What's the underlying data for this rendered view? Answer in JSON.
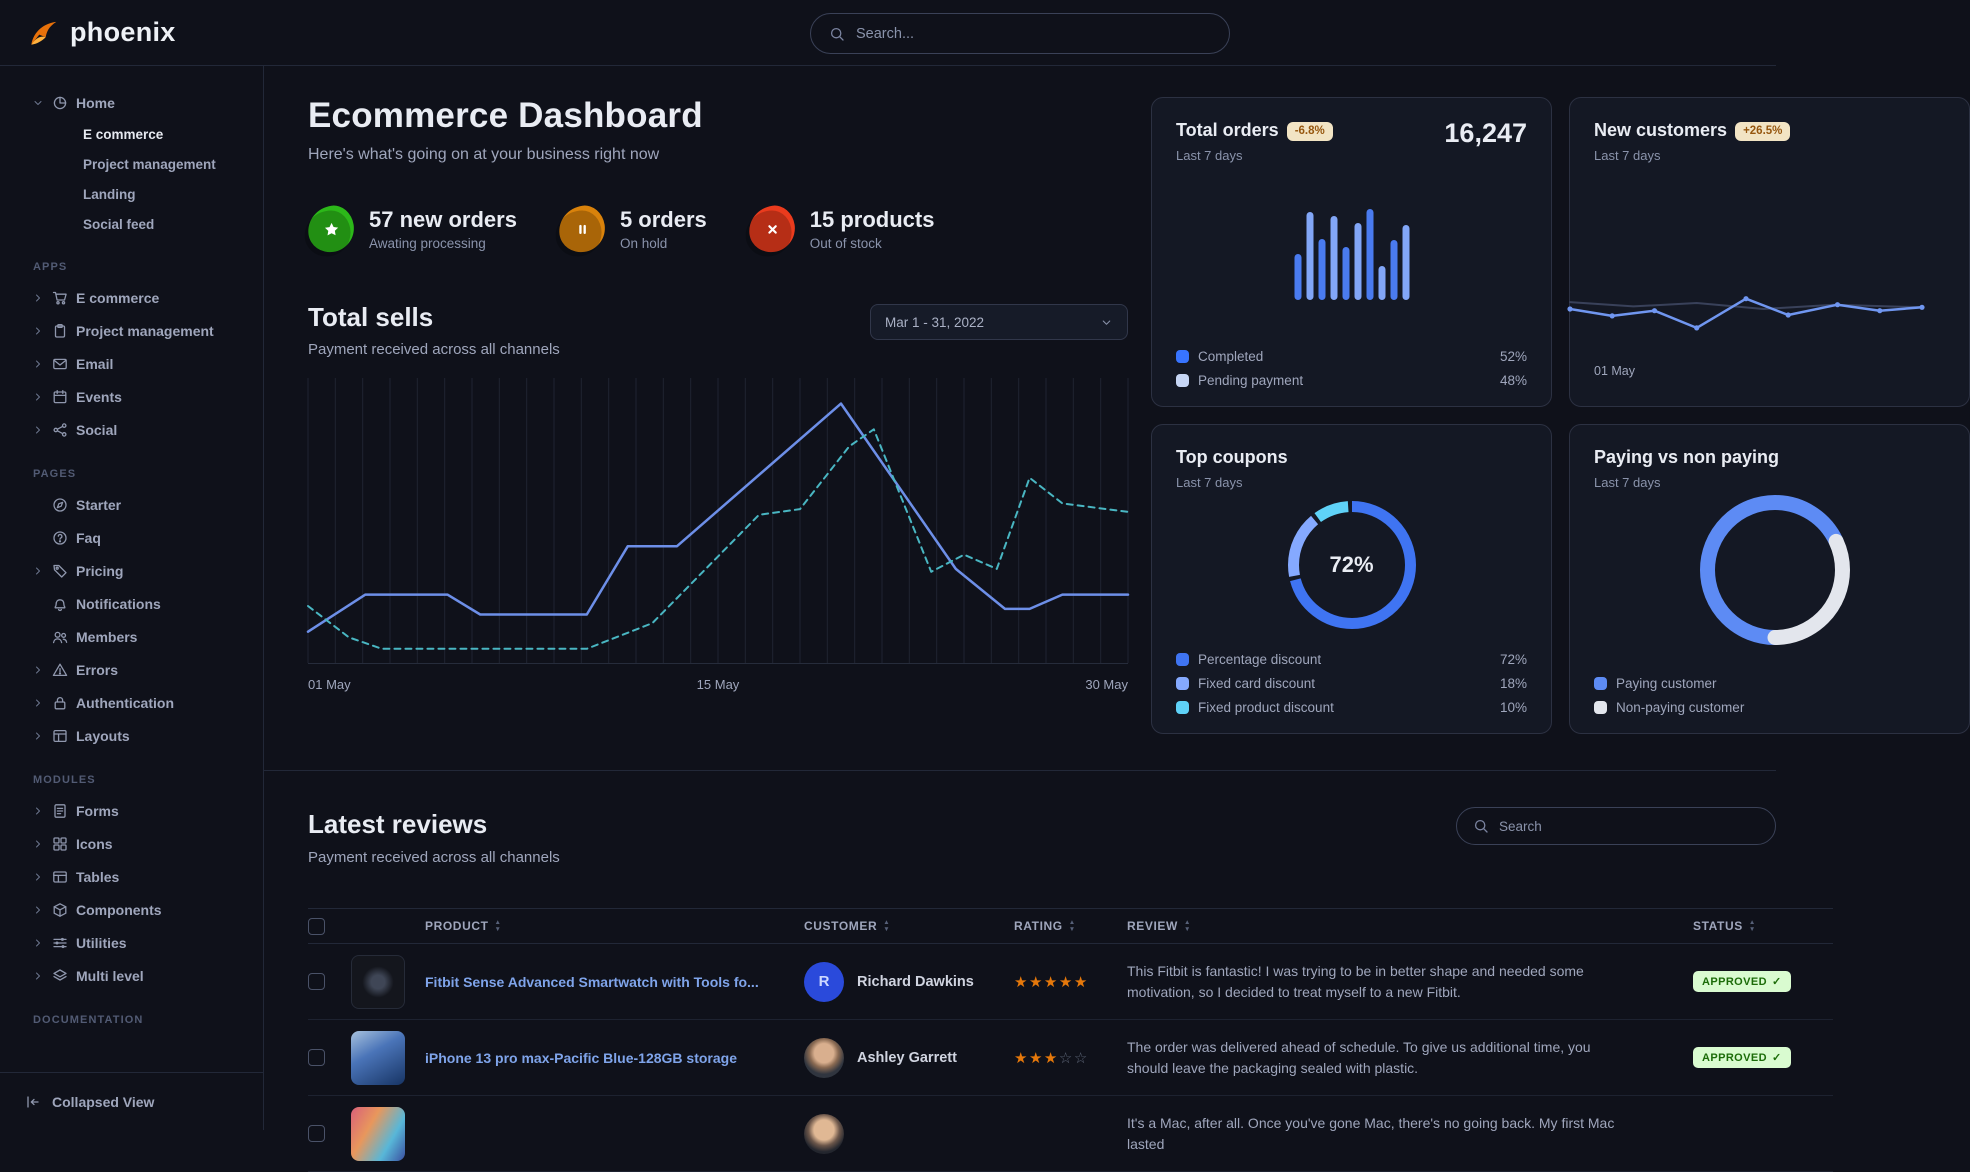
{
  "navbar": {
    "brand": "phoenix",
    "search": {
      "placeholder": "Search..."
    }
  },
  "sidebar": {
    "home_group": {
      "label": "Home",
      "icon": "pie",
      "children": [
        {
          "label": "E commerce",
          "active": true
        },
        {
          "label": "Project management",
          "active": false
        },
        {
          "label": "Landing",
          "active": false
        },
        {
          "label": "Social feed",
          "active": false
        }
      ]
    },
    "sections": [
      {
        "label": "APPS",
        "items": [
          {
            "label": "E commerce",
            "icon": "cart"
          },
          {
            "label": "Project management",
            "icon": "clipboard"
          },
          {
            "label": "Email",
            "icon": "mail"
          },
          {
            "label": "Events",
            "icon": "calendar"
          },
          {
            "label": "Social",
            "icon": "share"
          }
        ]
      },
      {
        "label": "PAGES",
        "items": [
          {
            "label": "Starter",
            "icon": "compass"
          },
          {
            "label": "Faq",
            "icon": "question"
          },
          {
            "label": "Pricing",
            "icon": "tag"
          },
          {
            "label": "Notifications",
            "icon": "bell"
          },
          {
            "label": "Members",
            "icon": "users"
          },
          {
            "label": "Errors",
            "icon": "warning"
          },
          {
            "label": "Authentication",
            "icon": "lock"
          },
          {
            "label": "Layouts",
            "icon": "layout"
          }
        ]
      },
      {
        "label": "MODULES",
        "items": [
          {
            "label": "Forms",
            "icon": "form"
          },
          {
            "label": "Icons",
            "icon": "grid"
          },
          {
            "label": "Tables",
            "icon": "table"
          },
          {
            "label": "Components",
            "icon": "box"
          },
          {
            "label": "Utilities",
            "icon": "sliders"
          },
          {
            "label": "Multi level",
            "icon": "layers"
          }
        ]
      },
      {
        "label": "DOCUMENTATION",
        "items": []
      }
    ],
    "footer": {
      "label": "Collapsed View",
      "icon": "collapse"
    }
  },
  "header": {
    "title": "Ecommerce Dashboard",
    "subtitle": "Here's what's going on at your business right now"
  },
  "stats": [
    {
      "value": "57 new orders",
      "caption": "Awating processing",
      "icon": "star-solid",
      "color": "#2cb819"
    },
    {
      "value": "5 orders",
      "caption": "On hold",
      "icon": "pause",
      "color": "#d9820b"
    },
    {
      "value": "15 products",
      "caption": "Out of stock",
      "icon": "x",
      "color": "#ea3b1d"
    }
  ],
  "total_sells": {
    "title": "Total sells",
    "subtitle": "Payment received across all channels",
    "date_range": "Mar 1 - 31, 2022"
  },
  "cards": {
    "total_orders": {
      "title": "Total orders",
      "badge": "-6.8%",
      "period": "Last 7 days",
      "value": "16,247"
    },
    "new_customers": {
      "title": "New customers",
      "badge": "+26.5%",
      "period": "Last 7 days"
    },
    "top_coupons": {
      "title": "Top coupons",
      "period": "Last 7 days"
    },
    "paying": {
      "title": "Paying vs non paying",
      "period": "Last 7 days"
    }
  },
  "reviews": {
    "title": "Latest reviews",
    "subtitle": "Payment received across all channels",
    "search_placeholder": "Search",
    "columns": [
      "PRODUCT",
      "CUSTOMER",
      "RATING",
      "REVIEW",
      "STATUS"
    ],
    "rows": [
      {
        "product": "Fitbit Sense Advanced Smartwatch with Tools fo...",
        "customer": "Richard Dawkins",
        "avatar_text": "R",
        "rating": 5,
        "review": "This Fitbit is fantastic! I was trying to be in better shape and needed some motivation, so I decided to treat myself to a new Fitbit.",
        "status": "APPROVED"
      },
      {
        "product": "iPhone 13 pro max-Pacific Blue-128GB storage",
        "customer": "Ashley Garrett",
        "avatar_text": "",
        "rating": 3,
        "review": "The order was delivered ahead of schedule. To give us additional time, you should leave the packaging sealed with plastic.",
        "status": "APPROVED"
      },
      {
        "product": "",
        "customer": "",
        "avatar_text": "",
        "rating": 0,
        "review": "It's a Mac, after all. Once you've gone Mac, there's no going back. My first Mac lasted",
        "status": ""
      }
    ]
  },
  "chart_data": [
    {
      "id": "total-sells",
      "type": "line",
      "title": "Total sells",
      "x_ticks": [
        "01 May",
        "15 May",
        "30 May"
      ],
      "ylim": [
        0,
        100
      ],
      "grid": "vertical",
      "grid_lines": 30,
      "series": [
        {
          "name": "current period",
          "style": "solid",
          "color": "#6d8fe8",
          "width": 2.5,
          "points": [
            [
              0,
              11
            ],
            [
              0.07,
              24
            ],
            [
              0.17,
              24
            ],
            [
              0.21,
              17
            ],
            [
              0.34,
              17
            ],
            [
              0.39,
              41
            ],
            [
              0.45,
              41
            ],
            [
              0.65,
              91
            ],
            [
              0.79,
              33
            ],
            [
              0.85,
              19
            ],
            [
              0.88,
              19
            ],
            [
              0.92,
              24
            ],
            [
              1,
              24
            ]
          ]
        },
        {
          "name": "previous period",
          "style": "dashed",
          "color": "#49b6c2",
          "width": 2,
          "points": [
            [
              0,
              20
            ],
            [
              0.05,
              9
            ],
            [
              0.09,
              5
            ],
            [
              0.34,
              5
            ],
            [
              0.42,
              14
            ],
            [
              0.55,
              52
            ],
            [
              0.6,
              54
            ],
            [
              0.66,
              76
            ],
            [
              0.69,
              82
            ],
            [
              0.76,
              32
            ],
            [
              0.8,
              38
            ],
            [
              0.84,
              33
            ],
            [
              0.88,
              65
            ],
            [
              0.92,
              56
            ],
            [
              1,
              53
            ]
          ]
        }
      ]
    },
    {
      "id": "total-orders",
      "type": "bar",
      "title": "Total orders",
      "values": [
        48,
        92,
        64,
        88,
        55,
        80,
        95,
        35,
        62,
        78
      ],
      "colors": [
        "#4a7bf0",
        "#82a6f7"
      ],
      "legend": [
        {
          "label": "Completed",
          "display": "52%",
          "color": "#3874ff"
        },
        {
          "label": "Pending payment",
          "display": "48%",
          "color": "#c7d6f5"
        }
      ]
    },
    {
      "id": "new-customers",
      "type": "line",
      "title": "New customers",
      "x_ticks": [
        "01 May"
      ],
      "series": [
        {
          "name": "baseline",
          "style": "solid",
          "color": "#39415a",
          "width": 2,
          "points": [
            [
              0,
              58
            ],
            [
              0.18,
              53
            ],
            [
              0.36,
              57
            ],
            [
              0.55,
              50
            ],
            [
              0.75,
              55
            ],
            [
              1,
              52
            ]
          ]
        },
        {
          "name": "new customers",
          "style": "solid",
          "color": "#7096f0",
          "width": 2.5,
          "markers": true,
          "points": [
            [
              0,
              50
            ],
            [
              0.12,
              42
            ],
            [
              0.24,
              48
            ],
            [
              0.36,
              28
            ],
            [
              0.5,
              62
            ],
            [
              0.62,
              43
            ],
            [
              0.76,
              55
            ],
            [
              0.88,
              48
            ],
            [
              1,
              52
            ]
          ]
        }
      ]
    },
    {
      "id": "top-coupons",
      "type": "pie",
      "title": "Top coupons",
      "center_label": "72%",
      "stroke": 11,
      "gap": 4,
      "start": -90,
      "slices": [
        {
          "label": "Percentage discount",
          "value": 72,
          "display": "72%",
          "color": "#3f74f2"
        },
        {
          "label": "Fixed card discount",
          "value": 18,
          "display": "18%",
          "color": "#85a9ff"
        },
        {
          "label": "Fixed product discount",
          "value": 10,
          "display": "10%",
          "color": "#5fd2f8"
        }
      ]
    },
    {
      "id": "paying-gauge",
      "type": "pie",
      "title": "Paying vs non paying",
      "stroke": 15,
      "start": 90,
      "rounded": true,
      "slices": [
        {
          "label": "Paying customer",
          "value": 68,
          "color": "#5d8bf4"
        },
        {
          "label": "Non-paying customer",
          "value": 32,
          "color": "#e3e6ed"
        }
      ]
    }
  ]
}
